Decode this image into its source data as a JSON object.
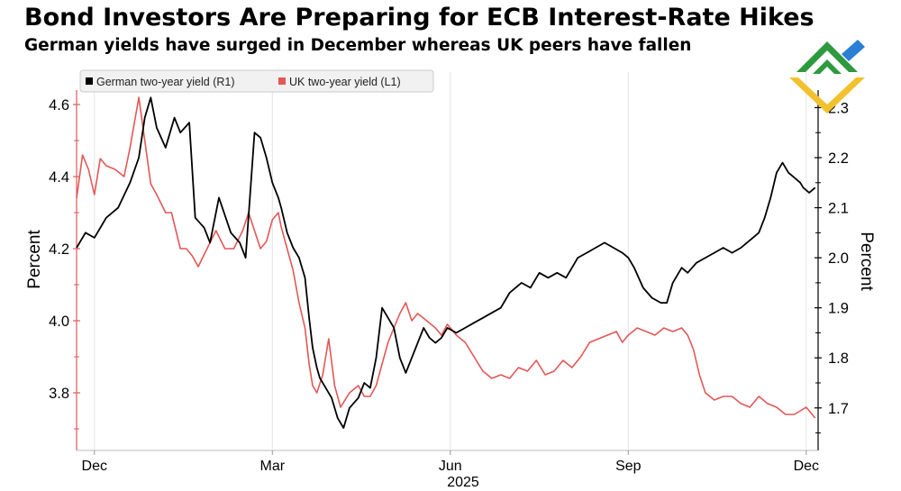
{
  "header": {
    "title": "Bond Investors Are Preparing for ECB Interest-Rate Hikes",
    "subtitle": "German yields have surged in December whereas UK peers have fallen"
  },
  "chart_data": {
    "type": "line",
    "x_tick_labels": [
      "Dec",
      "Mar",
      "Jun",
      "Sep",
      "Dec"
    ],
    "x_tick_months": [
      1,
      4,
      7,
      10,
      13
    ],
    "x_year_label": "2025",
    "x_range_months": [
      0.7,
      13.2
    ],
    "left_axis": {
      "label": "Percent",
      "range": [
        3.64,
        4.64
      ],
      "ticks": [
        3.8,
        4.0,
        4.2,
        4.4,
        4.6
      ],
      "tick_labels": [
        "3.8",
        "4.0",
        "4.2",
        "4.4",
        "4.6"
      ]
    },
    "right_axis": {
      "label": "Percent",
      "range": [
        1.615,
        2.335
      ],
      "ticks": [
        1.7,
        1.8,
        1.9,
        2.0,
        2.1,
        2.2,
        2.3
      ],
      "tick_labels": [
        "1.7",
        "1.8",
        "1.9",
        "2.0",
        "2.1",
        "2.2",
        "2.3"
      ]
    },
    "legend": {
      "placement": "top-left"
    },
    "series": [
      {
        "name": "German two-year yield (R1)",
        "axis": "right",
        "color": "#000000",
        "x": [
          0.7,
          0.85,
          1.0,
          1.2,
          1.4,
          1.6,
          1.75,
          1.85,
          1.95,
          2.05,
          2.2,
          2.35,
          2.45,
          2.6,
          2.7,
          2.85,
          2.95,
          3.1,
          3.3,
          3.45,
          3.55,
          3.7,
          3.8,
          3.9,
          4.0,
          4.1,
          4.15,
          4.25,
          4.35,
          4.45,
          4.55,
          4.62,
          4.68,
          4.75,
          4.8,
          4.9,
          5.0,
          5.1,
          5.2,
          5.3,
          5.45,
          5.55,
          5.65,
          5.75,
          5.85,
          5.95,
          6.05,
          6.15,
          6.25,
          6.35,
          6.45,
          6.55,
          6.65,
          6.75,
          6.85,
          6.95,
          7.1,
          7.25,
          7.4,
          7.55,
          7.7,
          7.85,
          8.0,
          8.1,
          8.2,
          8.35,
          8.5,
          8.65,
          8.8,
          8.95,
          9.05,
          9.15,
          9.3,
          9.45,
          9.6,
          9.75,
          9.9,
          10.0,
          10.1,
          10.25,
          10.4,
          10.55,
          10.65,
          10.75,
          10.9,
          11.0,
          11.15,
          11.3,
          11.45,
          11.6,
          11.75,
          11.9,
          12.0,
          12.1,
          12.2,
          12.3,
          12.4,
          12.5,
          12.6,
          12.7,
          12.8,
          12.9,
          12.95,
          13.05,
          13.15
        ],
        "values": [
          2.02,
          2.05,
          2.04,
          2.08,
          2.1,
          2.15,
          2.2,
          2.28,
          2.32,
          2.26,
          2.22,
          2.28,
          2.25,
          2.27,
          2.08,
          2.06,
          2.03,
          2.12,
          2.05,
          2.03,
          2.0,
          2.25,
          2.24,
          2.2,
          2.15,
          2.12,
          2.1,
          2.05,
          2.02,
          2.0,
          1.96,
          1.88,
          1.82,
          1.78,
          1.76,
          1.74,
          1.72,
          1.68,
          1.66,
          1.7,
          1.72,
          1.75,
          1.74,
          1.8,
          1.9,
          1.88,
          1.86,
          1.8,
          1.77,
          1.8,
          1.83,
          1.86,
          1.84,
          1.83,
          1.84,
          1.86,
          1.85,
          1.86,
          1.87,
          1.88,
          1.89,
          1.9,
          1.93,
          1.94,
          1.95,
          1.94,
          1.97,
          1.96,
          1.97,
          1.96,
          1.98,
          2.0,
          2.01,
          2.02,
          2.03,
          2.02,
          2.01,
          2.0,
          1.98,
          1.94,
          1.92,
          1.91,
          1.91,
          1.95,
          1.98,
          1.97,
          1.99,
          2.0,
          2.01,
          2.02,
          2.01,
          2.02,
          2.03,
          2.04,
          2.05,
          2.08,
          2.12,
          2.17,
          2.19,
          2.17,
          2.16,
          2.15,
          2.14,
          2.13,
          2.14
        ],
        "end_value": 2.14
      },
      {
        "name": "UK two-year yield (L1)",
        "axis": "left",
        "color": "#e35757",
        "x": [
          0.7,
          0.8,
          0.9,
          1.0,
          1.1,
          1.2,
          1.35,
          1.5,
          1.6,
          1.75,
          1.85,
          1.95,
          2.05,
          2.2,
          2.3,
          2.45,
          2.55,
          2.65,
          2.75,
          2.9,
          3.05,
          3.2,
          3.35,
          3.5,
          3.6,
          3.7,
          3.8,
          3.9,
          4.0,
          4.1,
          4.15,
          4.25,
          4.35,
          4.45,
          4.55,
          4.62,
          4.68,
          4.75,
          4.85,
          4.95,
          5.05,
          5.15,
          5.3,
          5.45,
          5.55,
          5.65,
          5.75,
          5.85,
          5.95,
          6.05,
          6.15,
          6.25,
          6.35,
          6.45,
          6.6,
          6.75,
          6.85,
          6.95,
          7.1,
          7.25,
          7.4,
          7.55,
          7.7,
          7.85,
          8.0,
          8.15,
          8.3,
          8.45,
          8.6,
          8.75,
          8.9,
          9.05,
          9.2,
          9.35,
          9.5,
          9.65,
          9.8,
          9.9,
          10.0,
          10.15,
          10.3,
          10.45,
          10.6,
          10.75,
          10.9,
          11.0,
          11.1,
          11.2,
          11.3,
          11.45,
          11.6,
          11.75,
          11.9,
          12.05,
          12.2,
          12.35,
          12.5,
          12.65,
          12.8,
          12.9,
          13.0,
          13.1,
          13.15
        ],
        "values": [
          4.34,
          4.46,
          4.42,
          4.35,
          4.45,
          4.43,
          4.42,
          4.4,
          4.48,
          4.62,
          4.5,
          4.38,
          4.35,
          4.3,
          4.3,
          4.2,
          4.2,
          4.18,
          4.15,
          4.2,
          4.25,
          4.2,
          4.2,
          4.25,
          4.3,
          4.25,
          4.2,
          4.22,
          4.28,
          4.3,
          4.26,
          4.2,
          4.14,
          4.05,
          3.98,
          3.88,
          3.82,
          3.8,
          3.85,
          3.95,
          3.82,
          3.76,
          3.8,
          3.82,
          3.79,
          3.79,
          3.82,
          3.88,
          3.94,
          3.98,
          4.02,
          4.05,
          4.0,
          4.02,
          4.0,
          3.98,
          3.96,
          3.99,
          3.96,
          3.94,
          3.9,
          3.86,
          3.84,
          3.85,
          3.84,
          3.87,
          3.86,
          3.89,
          3.85,
          3.86,
          3.89,
          3.87,
          3.9,
          3.94,
          3.95,
          3.96,
          3.97,
          3.94,
          3.96,
          3.98,
          3.97,
          3.96,
          3.98,
          3.97,
          3.98,
          3.96,
          3.92,
          3.85,
          3.8,
          3.78,
          3.79,
          3.79,
          3.77,
          3.76,
          3.79,
          3.77,
          3.76,
          3.74,
          3.74,
          3.75,
          3.76,
          3.74,
          3.73
        ],
        "end_value": 3.73
      }
    ]
  }
}
